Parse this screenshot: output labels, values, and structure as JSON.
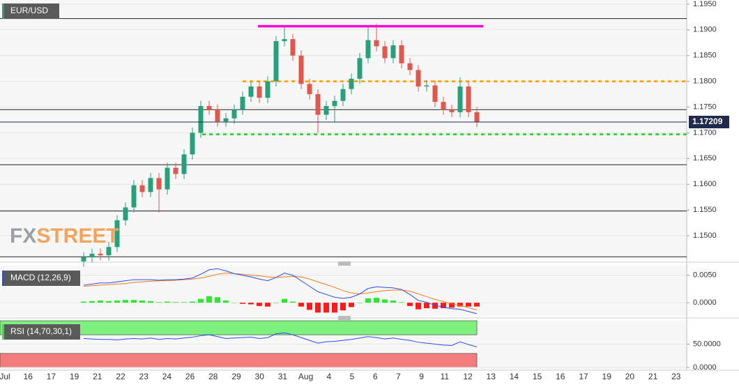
{
  "chart_data": [
    {
      "type": "candlestick",
      "title": "EUR/USD",
      "watermark": [
        "FX",
        "STREET"
      ],
      "up_color": "#26a17b",
      "down_color": "#e2574c",
      "open": [
        1.145,
        1.1458,
        1.1465,
        1.1462,
        1.1478,
        1.153,
        1.1555,
        1.1598,
        1.1585,
        1.1612,
        1.159,
        1.1632,
        1.162,
        1.1658,
        1.17,
        1.1752,
        1.1745,
        1.1722,
        1.1728,
        1.1745,
        1.177,
        1.179,
        1.1768,
        1.18,
        1.1878,
        1.1882,
        1.185,
        1.1795,
        1.1775,
        1.1735,
        1.1752,
        1.1762,
        1.1785,
        1.1805,
        1.1845,
        1.188,
        1.1868,
        1.1845,
        1.187,
        1.1835,
        1.1822,
        1.179,
        1.1792,
        1.176,
        1.1745,
        1.174,
        1.179,
        1.174
      ],
      "high": [
        1.1468,
        1.1475,
        1.1475,
        1.1488,
        1.154,
        1.1565,
        1.1608,
        1.1608,
        1.1622,
        1.1622,
        1.1642,
        1.1642,
        1.1668,
        1.171,
        1.1762,
        1.1762,
        1.1755,
        1.1738,
        1.1755,
        1.178,
        1.18,
        1.18,
        1.181,
        1.1888,
        1.1905,
        1.1892,
        1.186,
        1.1805,
        1.1785,
        1.1762,
        1.1772,
        1.1795,
        1.1815,
        1.1855,
        1.1905,
        1.1912,
        1.1878,
        1.188,
        1.188,
        1.1845,
        1.1832,
        1.1802,
        1.1802,
        1.177,
        1.1755,
        1.1808,
        1.18,
        1.175
      ],
      "low": [
        1.144,
        1.1448,
        1.1452,
        1.1452,
        1.1468,
        1.152,
        1.1545,
        1.1575,
        1.1575,
        1.1545,
        1.158,
        1.161,
        1.161,
        1.1648,
        1.169,
        1.1735,
        1.1712,
        1.1712,
        1.1718,
        1.1735,
        1.176,
        1.1758,
        1.1758,
        1.179,
        1.1868,
        1.184,
        1.1785,
        1.1765,
        1.17,
        1.1725,
        1.172,
        1.1752,
        1.1775,
        1.1795,
        1.1835,
        1.1858,
        1.1835,
        1.1835,
        1.1825,
        1.1812,
        1.178,
        1.178,
        1.175,
        1.1735,
        1.173,
        1.173,
        1.173,
        1.1711
      ],
      "close": [
        1.1458,
        1.1465,
        1.1462,
        1.1478,
        1.153,
        1.1555,
        1.1598,
        1.1585,
        1.1612,
        1.159,
        1.1632,
        1.162,
        1.1658,
        1.17,
        1.1752,
        1.1745,
        1.1722,
        1.1728,
        1.1745,
        1.177,
        1.179,
        1.1768,
        1.18,
        1.1878,
        1.1882,
        1.185,
        1.1795,
        1.1775,
        1.1735,
        1.1752,
        1.1762,
        1.1785,
        1.1805,
        1.1845,
        1.188,
        1.1868,
        1.1845,
        1.187,
        1.1835,
        1.1822,
        1.179,
        1.1792,
        1.176,
        1.1745,
        1.174,
        1.179,
        1.174,
        1.1721
      ],
      "last_price": 1.17209,
      "last_price_color": "#1f2a4d",
      "levels": [
        {
          "value": 1.1922,
          "color": "#222222",
          "style": "solid"
        },
        {
          "value": 1.1907,
          "color": "#ff00dd",
          "style": "thick"
        },
        {
          "value": 1.18,
          "color": "#ff9900",
          "style": "dotted"
        },
        {
          "value": 1.1745,
          "color": "#222222",
          "style": "solid"
        },
        {
          "value": 1.1697,
          "color": "#22cc22",
          "style": "dotted"
        },
        {
          "value": 1.1638,
          "color": "#222222",
          "style": "solid"
        },
        {
          "value": 1.1548,
          "color": "#222222",
          "style": "solid"
        },
        {
          "value": 1.1459,
          "color": "#222222",
          "style": "solid"
        }
      ],
      "ylim": [
        1.1454,
        1.1958
      ],
      "yticks": [
        {
          "value": 1.195,
          "label": "1.1950"
        },
        {
          "value": 1.19,
          "label": "1.1900"
        },
        {
          "value": 1.185,
          "label": "1.1850"
        },
        {
          "value": 1.18,
          "label": "1.1800"
        },
        {
          "value": 1.175,
          "label": "1.1750"
        },
        {
          "value": 1.17,
          "label": "1.1700"
        },
        {
          "value": 1.165,
          "label": "1.1650"
        },
        {
          "value": 1.16,
          "label": "1.1600"
        },
        {
          "value": 1.155,
          "label": "1.1550"
        },
        {
          "value": 1.15,
          "label": "1.1500"
        }
      ],
      "grid": true,
      "xtick_labels": [
        "Jul",
        "16",
        "17",
        "19",
        "21",
        "22",
        "23",
        "24",
        "26",
        "28",
        "29",
        "30",
        "31",
        "Aug",
        "4",
        "5",
        "6",
        "7",
        "9",
        "11",
        "12",
        "13",
        "14",
        "15",
        "16",
        "17",
        "19",
        "20",
        "21",
        "23"
      ]
    },
    {
      "type": "macd",
      "title": "MACD (12,26,9)",
      "macd": {
        "color": "#2b4cf0",
        "values": [
          0.0032,
          0.0034,
          0.0036,
          0.0036,
          0.0038,
          0.004,
          0.0042,
          0.0042,
          0.0042,
          0.0041,
          0.0042,
          0.0042,
          0.0043,
          0.0045,
          0.0052,
          0.006,
          0.0062,
          0.0058,
          0.0053,
          0.005,
          0.0047,
          0.0043,
          0.004,
          0.0046,
          0.0054,
          0.005,
          0.004,
          0.003,
          0.002,
          0.0015,
          0.001,
          0.0008,
          0.001,
          0.0016,
          0.0026,
          0.0029,
          0.0028,
          0.0027,
          0.0024,
          0.0015,
          0.0004,
          0.0001,
          -0.0005,
          -0.0008,
          -0.0011,
          -0.0012,
          -0.0016,
          -0.002
        ]
      },
      "signal": {
        "color": "#f07a1a",
        "values": [
          0.003,
          0.0031,
          0.0032,
          0.0033,
          0.0034,
          0.0035,
          0.0037,
          0.0038,
          0.0039,
          0.004,
          0.004,
          0.0041,
          0.0042,
          0.0043,
          0.0045,
          0.0048,
          0.0052,
          0.0054,
          0.0053,
          0.0052,
          0.005,
          0.0049,
          0.0047,
          0.0046,
          0.0047,
          0.0048,
          0.0047,
          0.0043,
          0.0038,
          0.0033,
          0.0028,
          0.0022,
          0.0018,
          0.0016,
          0.0018,
          0.002,
          0.0022,
          0.0023,
          0.0023,
          0.0021,
          0.0016,
          0.0011,
          0.0006,
          0.0002,
          -0.0002,
          -0.0005,
          -0.0009,
          -0.0013
        ]
      },
      "histogram": {
        "up_color": "#2ee82e",
        "down_color": "#ff1a1a",
        "values": [
          0.0002,
          0.0003,
          0.0004,
          0.0003,
          0.0004,
          0.0005,
          0.0005,
          0.0004,
          0.0003,
          0.0001,
          0.0002,
          0.0001,
          0.0001,
          0.0002,
          0.0007,
          0.0012,
          0.001,
          0.0004,
          0,
          -0.0002,
          -0.0003,
          -0.0006,
          -0.0007,
          0,
          0.0007,
          0.0002,
          -0.0007,
          -0.0013,
          -0.0018,
          -0.0018,
          -0.0018,
          -0.0014,
          -0.0008,
          0,
          0.0008,
          0.0009,
          0.0006,
          0.0004,
          0.0001,
          -0.0006,
          -0.0012,
          -0.001,
          -0.0011,
          -0.001,
          -0.0009,
          -0.0007,
          -0.0007,
          -0.0007
        ]
      },
      "ylim": [
        -0.0024,
        0.00675
      ],
      "yticks": [
        {
          "value": 0.005,
          "label": "0.0050"
        },
        {
          "value": 0,
          "label": "0.0000"
        }
      ]
    },
    {
      "type": "rsi",
      "title": "RSI (14,70,30,1)",
      "color": "#2b4cf0",
      "values": [
        62,
        61,
        60,
        60,
        59,
        61,
        62,
        61,
        63,
        60,
        62,
        61,
        63,
        65,
        68,
        70,
        66,
        62,
        63,
        64,
        65,
        62,
        64,
        72,
        74,
        70,
        64,
        58,
        52,
        55,
        56,
        58,
        60,
        63,
        66,
        64,
        61,
        63,
        60,
        58,
        54,
        52,
        50,
        48,
        47,
        55,
        49,
        44
      ],
      "bands": [
        {
          "from": 70,
          "to": 100,
          "color": "#7ef07e"
        },
        {
          "from": 0,
          "to": 30,
          "color": "#f47c7c"
        }
      ],
      "ylim": [
        -4.5,
        100
      ],
      "yticks": [
        {
          "value": 50,
          "label": "50.0000"
        },
        {
          "value": 0,
          "label": "0.0000"
        }
      ]
    }
  ]
}
